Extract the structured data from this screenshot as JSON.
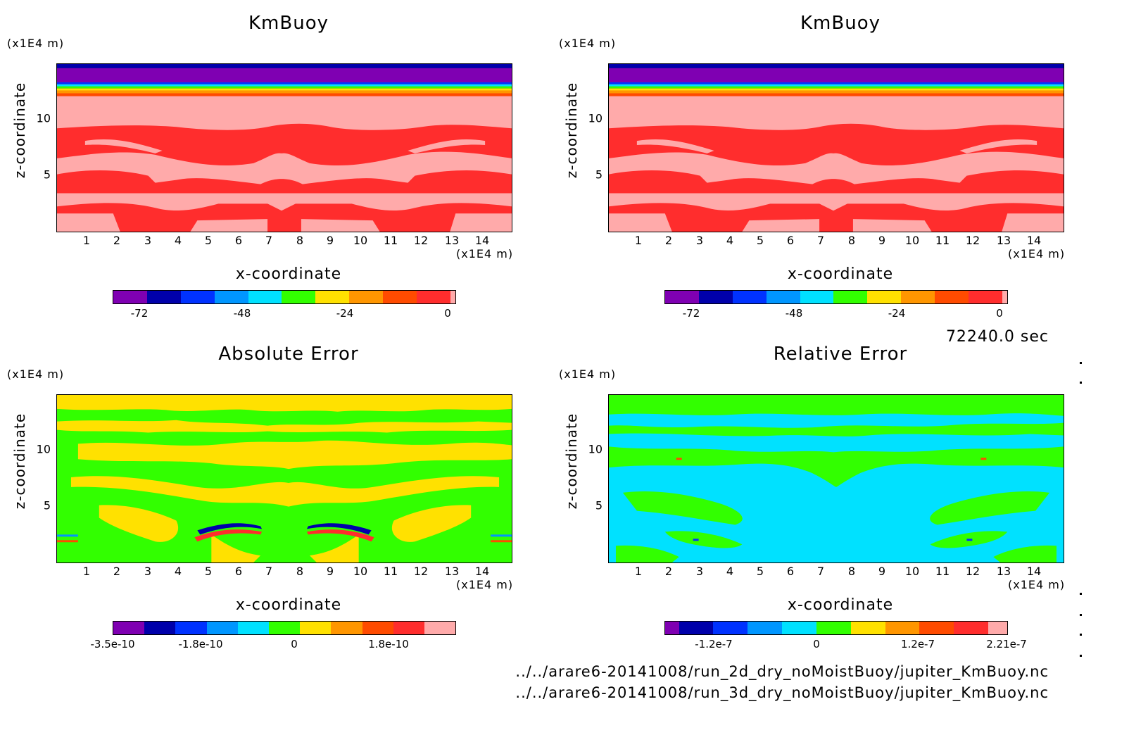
{
  "timestamp": "72240.0 sec",
  "files": [
    "../../arare6-20141008/run_2d_dry_noMoistBuoy/jupiter_KmBuoy.nc",
    "../../arare6-20141008/run_3d_dry_noMoistBuoy/jupiter_KmBuoy.nc"
  ],
  "chart_data": [
    {
      "type": "heatmap",
      "title": "KmBuoy",
      "xlabel": "x-coordinate",
      "ylabel": "z-coordinate",
      "x_unit": "(x1E4 m)",
      "y_unit": "(x1E4 m)",
      "x_ticks": [
        "1",
        "2",
        "3",
        "4",
        "5",
        "6",
        "7",
        "8",
        "9",
        "10",
        "11",
        "12",
        "13",
        "14"
      ],
      "y_ticks": [
        "5",
        "10"
      ],
      "xlim": [
        0,
        15
      ],
      "ylim": [
        0,
        15
      ],
      "colorbar": {
        "colors": [
          "#7f00b2",
          "#0000aa",
          "#0032ff",
          "#0096ff",
          "#00e1ff",
          "#32ff00",
          "#ffe100",
          "#ff9600",
          "#ff4b00",
          "#ff2d2d",
          "#ffaaaa"
        ],
        "tick_labels": [
          "-72",
          "-48",
          "-24",
          "0"
        ],
        "tick_values": [
          -72,
          -48,
          -24,
          0
        ],
        "range": [
          -78,
          0
        ]
      }
    },
    {
      "type": "heatmap",
      "title": "KmBuoy",
      "xlabel": "x-coordinate",
      "ylabel": "z-coordinate",
      "x_unit": "(x1E4 m)",
      "y_unit": "(x1E4 m)",
      "x_ticks": [
        "1",
        "2",
        "3",
        "4",
        "5",
        "6",
        "7",
        "8",
        "9",
        "10",
        "11",
        "12",
        "13",
        "14"
      ],
      "y_ticks": [
        "5",
        "10"
      ],
      "xlim": [
        0,
        15
      ],
      "ylim": [
        0,
        15
      ],
      "colorbar": {
        "colors": [
          "#7f00b2",
          "#0000aa",
          "#0032ff",
          "#0096ff",
          "#00e1ff",
          "#32ff00",
          "#ffe100",
          "#ff9600",
          "#ff4b00",
          "#ff2d2d",
          "#ffaaaa"
        ],
        "tick_labels": [
          "-72",
          "-48",
          "-24",
          "0"
        ],
        "tick_values": [
          -72,
          -48,
          -24,
          0
        ],
        "range": [
          -78,
          0
        ]
      }
    },
    {
      "type": "heatmap",
      "title": "Absolute Error",
      "xlabel": "x-coordinate",
      "ylabel": "z-coordinate",
      "x_unit": "(x1E4 m)",
      "y_unit": "(x1E4 m)",
      "x_ticks": [
        "1",
        "2",
        "3",
        "4",
        "5",
        "6",
        "7",
        "8",
        "9",
        "10",
        "11",
        "12",
        "13",
        "14"
      ],
      "y_ticks": [
        "5",
        "10"
      ],
      "xlim": [
        0,
        15
      ],
      "ylim": [
        0,
        15
      ],
      "colorbar": {
        "colors": [
          "#7f00b2",
          "#0000aa",
          "#0032ff",
          "#0096ff",
          "#00e1ff",
          "#32ff00",
          "#ffe100",
          "#ff9600",
          "#ff4b00",
          "#ff2d2d",
          "#ffaaaa"
        ],
        "tick_labels": [
          "-3.5e-10",
          "-1.8e-10",
          "0",
          "1.8e-10"
        ],
        "tick_values": [
          -3.5e-10,
          -1.8e-10,
          0,
          1.8e-10
        ],
        "range": [
          -3.5e-10,
          3.5e-10
        ]
      }
    },
    {
      "type": "heatmap",
      "title": "Relative Error",
      "xlabel": "x-coordinate",
      "ylabel": "z-coordinate",
      "x_unit": "(x1E4 m)",
      "y_unit": "(x1E4 m)",
      "x_ticks": [
        "1",
        "2",
        "3",
        "4",
        "5",
        "6",
        "7",
        "8",
        "9",
        "10",
        "11",
        "12",
        "13",
        "14"
      ],
      "y_ticks": [
        "5",
        "10"
      ],
      "xlim": [
        0,
        15
      ],
      "ylim": [
        0,
        15
      ],
      "colorbar": {
        "colors": [
          "#7f00b2",
          "#0000aa",
          "#0032ff",
          "#0096ff",
          "#00e1ff",
          "#32ff00",
          "#ffe100",
          "#ff9600",
          "#ff4b00",
          "#ff2d2d",
          "#ffaaaa"
        ],
        "tick_labels": [
          "-1.2e-7",
          "0",
          "1.2e-7",
          "2.21e-7"
        ],
        "tick_values": [
          -1.2e-07,
          0,
          1.2e-07,
          2.21e-07
        ],
        "range": [
          -2.21e-07,
          2.21e-07
        ]
      }
    }
  ]
}
